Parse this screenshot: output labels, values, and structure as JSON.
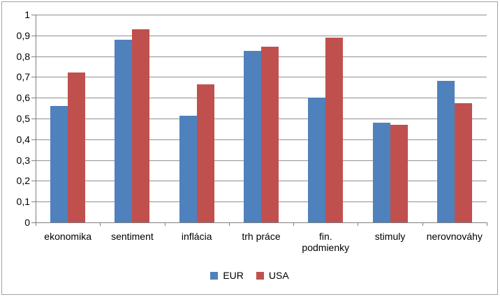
{
  "chart_data": {
    "type": "bar",
    "categories": [
      "ekonomika",
      "sentiment",
      "inflácia",
      "trh práce",
      "fin.\npodmienky",
      "stimuly",
      "nerovnováhy"
    ],
    "series": [
      {
        "name": "EUR",
        "color": "#4F81BD",
        "values": [
          0.56,
          0.88,
          0.515,
          0.825,
          0.6,
          0.48,
          0.68
        ]
      },
      {
        "name": "USA",
        "color": "#C0504D",
        "values": [
          0.72,
          0.93,
          0.665,
          0.845,
          0.89,
          0.47,
          0.575
        ]
      }
    ],
    "title": "",
    "xlabel": "",
    "ylabel": "",
    "ylim": [
      0,
      1
    ],
    "ytick_step": 0.1,
    "ytick_labels": [
      "0",
      "0,1",
      "0,2",
      "0,3",
      "0,4",
      "0,5",
      "0,6",
      "0,7",
      "0,8",
      "0,9",
      "1"
    ],
    "grid": true,
    "legend_position": "bottom"
  },
  "colors": {
    "series_eur": "#4F81BD",
    "series_usa": "#C0504D",
    "gridline": "#8F8F8F",
    "axis": "#7F7F7F",
    "text": "#000000",
    "background": "#FFFFFF",
    "frame_border": "#A3A3A3"
  }
}
